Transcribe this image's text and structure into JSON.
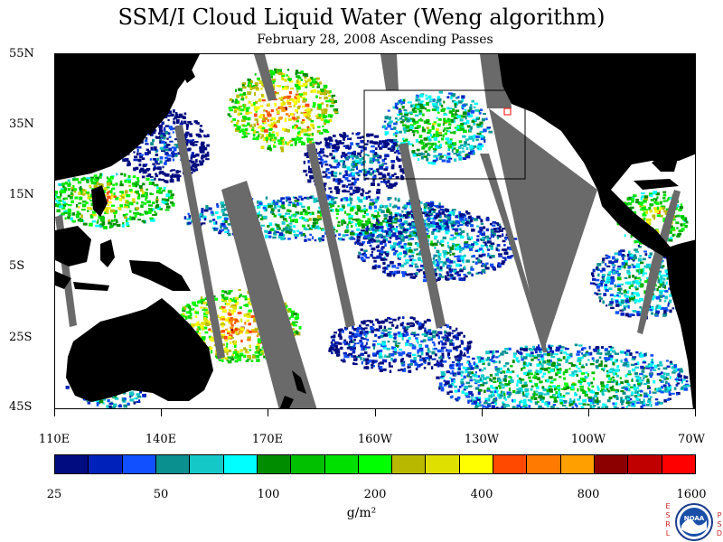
{
  "title": "SSM/I Cloud Liquid Water (Weng algorithm)",
  "subtitle": "February 28, 2008  Ascending Passes",
  "map": {
    "lat_labels": [
      "55N",
      "35N",
      "15N",
      "5S",
      "25S",
      "45S"
    ],
    "lon_labels": [
      "110E",
      "140E",
      "170E",
      "160W",
      "130W",
      "100W",
      "70W"
    ],
    "colors": {
      "land": "#000000",
      "no_data": "#6a6a6a",
      "clear": "#ffffff",
      "box": "#000000",
      "marker": "#ff0000"
    }
  },
  "colorbar": {
    "colors": [
      "#000c80",
      "#0022bb",
      "#1050ff",
      "#0b9090",
      "#15c8c8",
      "#00ffff",
      "#008c00",
      "#00c000",
      "#00e000",
      "#00ff00",
      "#b8b800",
      "#e0e000",
      "#ffff00",
      "#ff4800",
      "#ff7a00",
      "#ffa000",
      "#8c0000",
      "#c00000",
      "#ff0000"
    ],
    "labels": [
      "25",
      "50",
      "100",
      "200",
      "400",
      "800",
      "1600"
    ],
    "units": "g/m²"
  },
  "logo": {
    "text": "NOAA",
    "left_letters": [
      "E",
      "S",
      "R",
      "L"
    ],
    "right_letters": [
      "P",
      "S",
      "D"
    ]
  }
}
